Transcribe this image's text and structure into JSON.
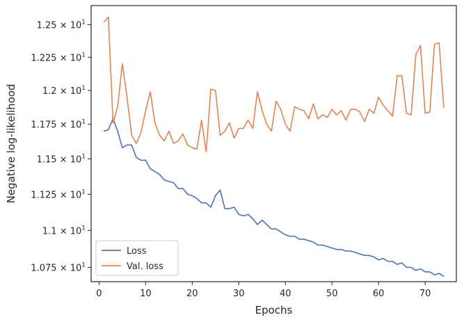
{
  "chart_data": {
    "type": "line",
    "title": "",
    "xlabel": "Epochs",
    "ylabel": "Negative log-likelihood",
    "xlim": [
      -1.7,
      76.7
    ],
    "ylim": [
      10.655,
      12.65
    ],
    "grid": false,
    "legend_position": "lower-left",
    "x_ticks": [
      0,
      10,
      20,
      30,
      40,
      50,
      60,
      70
    ],
    "y_ticks": [
      {
        "value": 10.75,
        "mantissa": "1.075"
      },
      {
        "value": 11.0,
        "mantissa": "1.1"
      },
      {
        "value": 11.25,
        "mantissa": "1.125"
      },
      {
        "value": 11.5,
        "mantissa": "1.15"
      },
      {
        "value": 11.75,
        "mantissa": "1.175"
      },
      {
        "value": 12.0,
        "mantissa": "1.2"
      },
      {
        "value": 12.25,
        "mantissa": "1.225"
      },
      {
        "value": 12.5,
        "mantissa": "1.25"
      }
    ],
    "tick_times": "×",
    "tick_base": "10",
    "tick_exponent": "1",
    "series": [
      {
        "name": "Loss",
        "color": "#4c72b0",
        "x": [
          1,
          2,
          3,
          4,
          5,
          6,
          7,
          8,
          9,
          10,
          11,
          12,
          13,
          14,
          15,
          16,
          17,
          18,
          19,
          20,
          21,
          22,
          23,
          24,
          25,
          26,
          27,
          28,
          29,
          30,
          31,
          32,
          33,
          34,
          35,
          36,
          37,
          38,
          39,
          40,
          41,
          42,
          43,
          44,
          45,
          46,
          47,
          48,
          49,
          50,
          51,
          52,
          53,
          54,
          55,
          56,
          57,
          58,
          59,
          60,
          61,
          62,
          63,
          64,
          65,
          66,
          67,
          68,
          69,
          70,
          71,
          72,
          73,
          74
        ],
        "values": [
          11.7,
          11.71,
          11.79,
          11.7,
          11.58,
          11.6,
          11.6,
          11.51,
          11.49,
          11.49,
          11.43,
          11.41,
          11.39,
          11.35,
          11.34,
          11.33,
          11.29,
          11.29,
          11.25,
          11.24,
          11.22,
          11.19,
          11.19,
          11.16,
          11.24,
          11.28,
          11.15,
          11.15,
          11.16,
          11.11,
          11.1,
          11.11,
          11.08,
          11.04,
          11.07,
          11.04,
          11.01,
          11.01,
          10.99,
          10.97,
          10.96,
          10.96,
          10.94,
          10.94,
          10.93,
          10.92,
          10.9,
          10.9,
          10.89,
          10.88,
          10.87,
          10.87,
          10.86,
          10.86,
          10.85,
          10.84,
          10.83,
          10.83,
          10.82,
          10.8,
          10.81,
          10.79,
          10.79,
          10.77,
          10.78,
          10.75,
          10.75,
          10.73,
          10.74,
          10.72,
          10.72,
          10.7,
          10.71,
          10.69
        ]
      },
      {
        "name": "Val. loss",
        "color": "#dd8452",
        "x": [
          1,
          2,
          3,
          4,
          5,
          6,
          7,
          8,
          9,
          10,
          11,
          12,
          13,
          14,
          15,
          16,
          17,
          18,
          19,
          20,
          21,
          22,
          23,
          24,
          25,
          26,
          27,
          28,
          29,
          30,
          31,
          32,
          33,
          34,
          35,
          36,
          37,
          38,
          39,
          40,
          41,
          42,
          43,
          44,
          45,
          46,
          47,
          48,
          49,
          50,
          51,
          52,
          53,
          54,
          55,
          56,
          57,
          58,
          59,
          60,
          61,
          62,
          63,
          64,
          65,
          66,
          67,
          68,
          69,
          70,
          71,
          72,
          73,
          74
        ],
        "values": [
          12.52,
          12.56,
          11.76,
          11.88,
          12.2,
          11.95,
          11.67,
          11.61,
          11.69,
          11.85,
          11.99,
          11.76,
          11.67,
          11.63,
          11.7,
          11.61,
          11.63,
          11.68,
          11.6,
          11.58,
          11.57,
          11.78,
          11.55,
          12.01,
          12.0,
          11.67,
          11.7,
          11.76,
          11.65,
          11.72,
          11.72,
          11.78,
          11.72,
          11.99,
          11.85,
          11.75,
          11.7,
          11.92,
          11.86,
          11.75,
          11.7,
          11.88,
          11.86,
          11.85,
          11.79,
          11.9,
          11.79,
          11.82,
          11.8,
          11.86,
          11.82,
          11.85,
          11.78,
          11.86,
          11.86,
          11.84,
          11.77,
          11.86,
          11.83,
          11.95,
          11.89,
          11.85,
          11.81,
          12.11,
          12.11,
          11.83,
          11.82,
          12.27,
          12.34,
          11.83,
          11.84,
          12.35,
          12.36,
          11.87
        ]
      }
    ]
  }
}
